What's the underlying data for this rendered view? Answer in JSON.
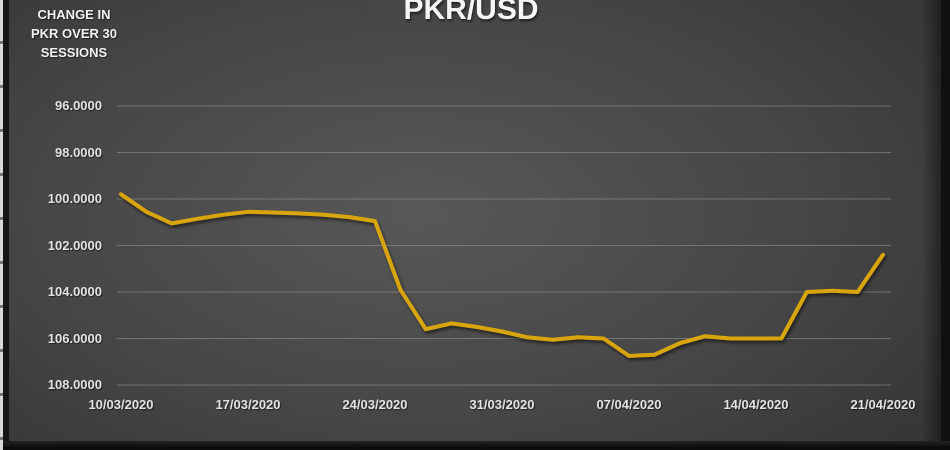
{
  "colors": {
    "background_center": "#585858",
    "background_mid": "#464646",
    "background_edge": "#333333",
    "frame": "#121212",
    "page_edge": "#d8d8d8",
    "gridline": "#a8a8a8",
    "title_text": "#f5f5f5",
    "axis_text": "#e3e3e3",
    "line": "#D9A50D"
  },
  "chart_data": {
    "type": "line",
    "title": "PKR/USD",
    "annotation": "CHANGE IN\nPKR OVER 30\nSESSIONS",
    "xlabel": "",
    "ylabel": "",
    "ylim": [
      96,
      108
    ],
    "y_axis_inverted": true,
    "grid": true,
    "legend_position": "none",
    "x": [
      "10/03/2020",
      "11/03/2020",
      "12/03/2020",
      "13/03/2020",
      "16/03/2020",
      "17/03/2020",
      "18/03/2020",
      "19/03/2020",
      "20/03/2020",
      "23/03/2020",
      "24/03/2020",
      "25/03/2020",
      "26/03/2020",
      "27/03/2020",
      "30/03/2020",
      "31/03/2020",
      "01/04/2020",
      "02/04/2020",
      "03/04/2020",
      "06/04/2020",
      "07/04/2020",
      "08/04/2020",
      "09/04/2020",
      "10/04/2020",
      "13/04/2020",
      "14/04/2020",
      "15/04/2020",
      "16/04/2020",
      "17/04/2020",
      "20/04/2020",
      "21/04/2020"
    ],
    "series": [
      {
        "name": "PKR/USD",
        "color": "#D9A50D",
        "values": [
          99.8,
          100.55,
          101.05,
          100.85,
          100.68,
          100.55,
          100.58,
          100.62,
          100.68,
          100.78,
          100.95,
          103.9,
          105.6,
          105.35,
          105.5,
          105.7,
          105.95,
          106.05,
          105.95,
          106.0,
          106.75,
          106.7,
          106.2,
          105.9,
          106.0,
          106.0,
          106.0,
          104.0,
          103.95,
          104.0,
          102.4
        ]
      }
    ],
    "ytick_values": [
      96,
      98,
      100,
      102,
      104,
      106,
      108
    ],
    "ytick_labels": [
      "96.0000",
      "98.0000",
      "100.0000",
      "102.0000",
      "104.0000",
      "106.0000",
      "108.0000"
    ],
    "xtick_indices": [
      0,
      5,
      10,
      15,
      20,
      25,
      30
    ],
    "xtick_labels": [
      "10/03/2020",
      "17/03/2020",
      "24/03/2020",
      "31/03/2020",
      "07/04/2020",
      "14/04/2020",
      "21/04/2020"
    ]
  }
}
